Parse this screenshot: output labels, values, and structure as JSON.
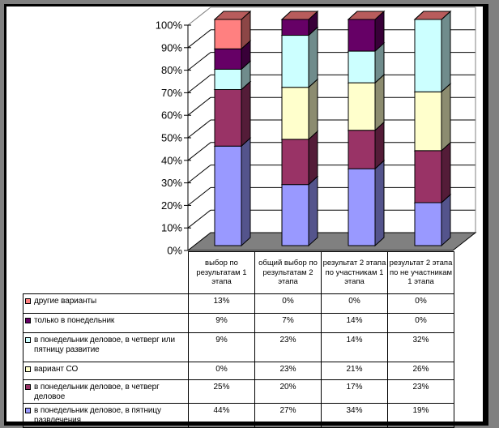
{
  "chart_data": {
    "type": "bar",
    "subtype": "3d-stacked-column-100-percent",
    "title": "",
    "xlabel": "",
    "ylabel": "",
    "axis": {
      "min": 0,
      "max": 100,
      "step": 10,
      "tick_format": "percent",
      "tick_labels": [
        "0%",
        "10%",
        "20%",
        "30%",
        "40%",
        "50%",
        "60%",
        "70%",
        "80%",
        "90%",
        "100%"
      ]
    },
    "grid": true,
    "legend_position": "left-of-data-table",
    "categories": [
      "выбор по результатам 1 этапа",
      "общий выбор по результатам 2 этапа",
      "результат 2 этапа по участникам 1 этапа",
      "результат 2 этапа по не участникам 1 этапа"
    ],
    "series": [
      {
        "name": "другие варианты",
        "color": "#FF8080",
        "values": [
          13,
          0,
          0,
          0
        ]
      },
      {
        "name": "только в понедельник",
        "color": "#660066",
        "values": [
          9,
          7,
          14,
          0
        ]
      },
      {
        "name": "в понедельник деловое, в четверг или пятницу развитие",
        "color": "#CCFFFF",
        "values": [
          9,
          23,
          14,
          32
        ]
      },
      {
        "name": "вариант СО",
        "color": "#FFFFCC",
        "values": [
          0,
          23,
          21,
          26
        ]
      },
      {
        "name": "в понедельник деловое, в четверг деловое",
        "color": "#993366",
        "values": [
          25,
          20,
          17,
          23
        ]
      },
      {
        "name": "в понедельник деловое, в пятницу развлечения",
        "color": "#9999FF",
        "values": [
          44,
          27,
          34,
          19
        ]
      }
    ],
    "stack_note": "stack order bottom-to-top is reverse of legend order",
    "colors": {
      "floor": "#808080",
      "wall_edge": "#808080",
      "line": "#000000"
    }
  },
  "table": {
    "headers": [
      "выбор по результатам 1 этапа",
      "общий выбор по результатам 2 этапа",
      "результат 2 этапа по участникам 1 этапа",
      "результат 2 этапа по не участникам 1 этапа"
    ],
    "rows": [
      {
        "label": "другие варианты",
        "swatch": "#FF8080",
        "values": [
          "13%",
          "0%",
          "0%",
          "0%"
        ]
      },
      {
        "label": "только в понедельник",
        "swatch": "#660066",
        "values": [
          "9%",
          "7%",
          "14%",
          "0%"
        ]
      },
      {
        "label": "в понедельник деловое, в четверг или пятницу развитие",
        "swatch": "#CCFFFF",
        "values": [
          "9%",
          "23%",
          "14%",
          "32%"
        ]
      },
      {
        "label": "вариант СО",
        "swatch": "#FFFFCC",
        "values": [
          "0%",
          "23%",
          "21%",
          "26%"
        ]
      },
      {
        "label": "в понедельник деловое, в четверг деловое",
        "swatch": "#993366",
        "values": [
          "25%",
          "20%",
          "17%",
          "23%"
        ]
      },
      {
        "label": "в понедельник деловое, в пятницу развлечения",
        "swatch": "#9999FF",
        "values": [
          "44%",
          "27%",
          "34%",
          "19%"
        ]
      }
    ]
  }
}
